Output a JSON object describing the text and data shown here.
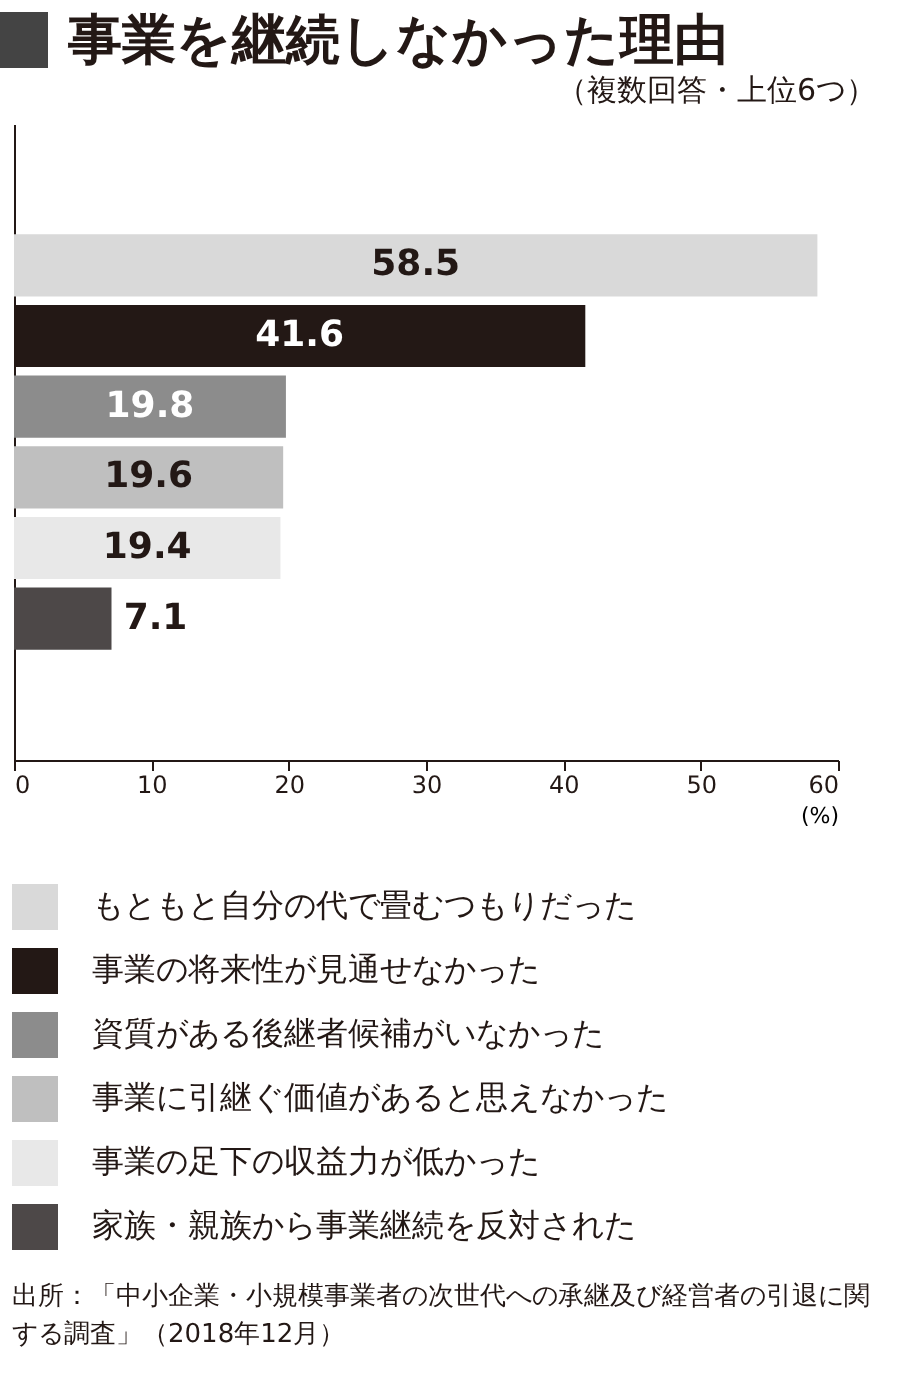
{
  "chart_data": {
    "type": "bar",
    "orientation": "horizontal",
    "title": "事業を継続しなかった理由",
    "subtitle": "（複数回答・上位6つ）",
    "xlabel": "(%)",
    "categories": [
      null
    ],
    "series": [
      {
        "name": "もともと自分の代で畳むつもりだった",
        "color": "#d9d9d9",
        "values": [
          58.5
        ]
      },
      {
        "name": "事業の将来性が見通せなかった",
        "color": "#231815",
        "values": [
          41.6
        ]
      },
      {
        "name": "資質がある後継者候補がいなかった",
        "color": "#8c8c8c",
        "values": [
          19.8
        ]
      },
      {
        "name": "事業に引継ぐ価値があると思えなかった",
        "color": "#bfbfbf",
        "values": [
          19.6
        ]
      },
      {
        "name": "事業の足下の収益力が低かった",
        "color": "#e8e8e8",
        "values": [
          19.4
        ]
      },
      {
        "name": "家族・親族から事業継続を反対された",
        "color": "#4d4848",
        "values": [
          7.1
        ]
      }
    ],
    "xlim": [
      0,
      60
    ],
    "xticks": [
      0,
      10,
      20,
      30,
      40,
      50,
      60
    ],
    "data_labels": true,
    "legend": "bottom",
    "grid": false,
    "tick_labels": "x",
    "annotations": [
      "出所：「中小企業・小規模事業者の次世代への承継及び経営者の引退に関する調査」（2018年12月）"
    ]
  }
}
